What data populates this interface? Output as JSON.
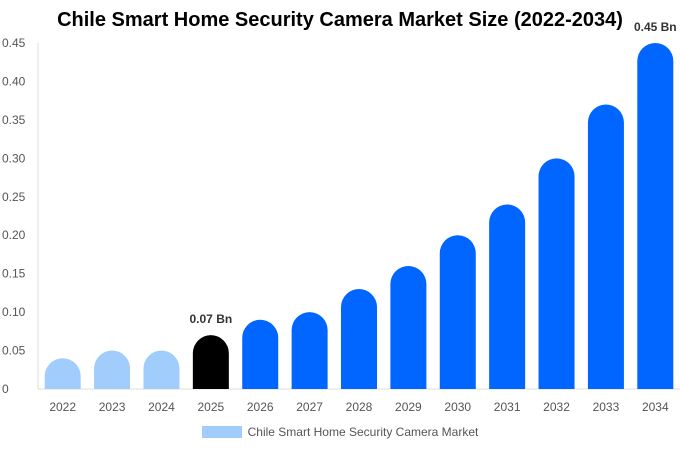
{
  "chart_data": {
    "type": "bar",
    "title": "Chile Smart Home Security Camera Market Size (2022-2034)",
    "categories": [
      "2022",
      "2023",
      "2024",
      "2025",
      "2026",
      "2027",
      "2028",
      "2029",
      "2030",
      "2031",
      "2032",
      "2033",
      "2034"
    ],
    "series": [
      {
        "name": "Chile Smart Home Security Camera Market",
        "values": [
          0.04,
          0.05,
          0.05,
          0.07,
          0.09,
          0.1,
          0.13,
          0.16,
          0.2,
          0.24,
          0.3,
          0.37,
          0.45
        ]
      }
    ],
    "bar_colors": [
      "#a0cdfc",
      "#a0cdfc",
      "#a0cdfc",
      "#000000",
      "#0066ff",
      "#0066ff",
      "#0066ff",
      "#0066ff",
      "#0066ff",
      "#0066ff",
      "#0066ff",
      "#0066ff",
      "#0066ff"
    ],
    "legend_color": "#a0cdfc",
    "data_labels": [
      {
        "category": "2025",
        "text": "0.07 Bn"
      },
      {
        "category": "2034",
        "text": "0.45 Bn"
      }
    ],
    "yticks": [
      "0",
      "0.05",
      "0.10",
      "0.15",
      "0.20",
      "0.25",
      "0.30",
      "0.35",
      "0.40",
      "0.45"
    ],
    "ylim": [
      0,
      0.45
    ],
    "xlabel": "",
    "ylabel": "",
    "grid": false,
    "legend_position": "bottom"
  }
}
